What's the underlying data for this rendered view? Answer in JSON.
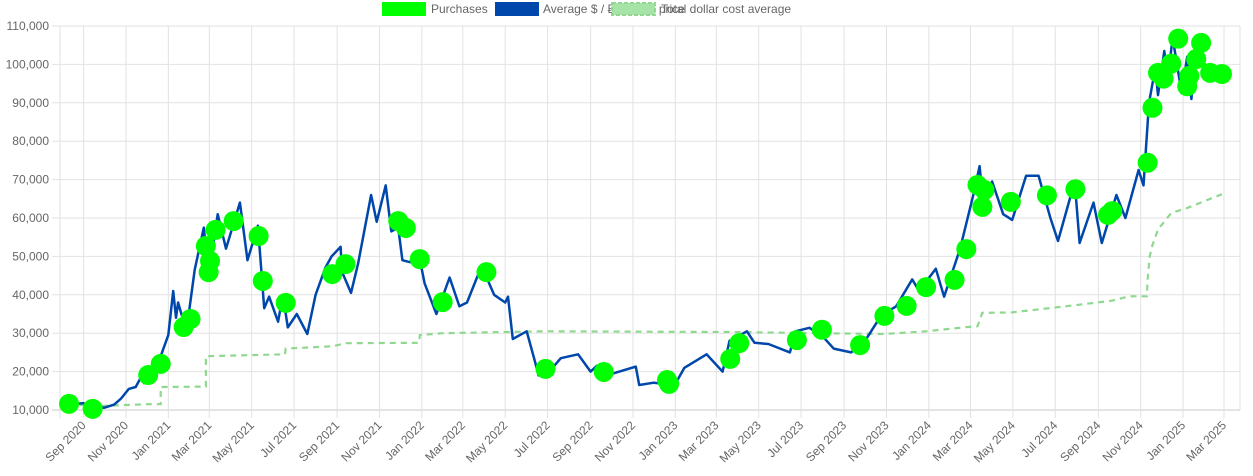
{
  "chart_data": {
    "type": "line",
    "title": "",
    "xlabel": "",
    "ylabel": "",
    "legend_position": "top",
    "grid": true,
    "xlim": [
      "2020-07-29",
      "2025-03-24"
    ],
    "ylim": [
      10000,
      110000
    ],
    "y_ticks": [
      "10,000",
      "20,000",
      "30,000",
      "40,000",
      "50,000",
      "60,000",
      "70,000",
      "80,000",
      "90,000",
      "100,000",
      "110,000"
    ],
    "y_tick_values": [
      10000,
      20000,
      30000,
      40000,
      50000,
      60000,
      70000,
      80000,
      90000,
      100000,
      110000
    ],
    "x_ticks": [
      {
        "date": "2020-09-01",
        "label": "Sep 2020"
      },
      {
        "date": "2020-11-01",
        "label": "Nov 2020"
      },
      {
        "date": "2021-01-01",
        "label": "Jan 2021"
      },
      {
        "date": "2021-03-01",
        "label": "Mar 2021"
      },
      {
        "date": "2021-05-01",
        "label": "May 2021"
      },
      {
        "date": "2021-07-01",
        "label": "Jul 2021"
      },
      {
        "date": "2021-09-01",
        "label": "Sep 2021"
      },
      {
        "date": "2021-11-01",
        "label": "Nov 2021"
      },
      {
        "date": "2022-01-01",
        "label": "Jan 2022"
      },
      {
        "date": "2022-03-01",
        "label": "Mar 2022"
      },
      {
        "date": "2022-05-01",
        "label": "May 2022"
      },
      {
        "date": "2022-07-01",
        "label": "Jul 2022"
      },
      {
        "date": "2022-09-01",
        "label": "Sep 2022"
      },
      {
        "date": "2022-11-01",
        "label": "Nov 2022"
      },
      {
        "date": "2023-01-01",
        "label": "Jan 2023"
      },
      {
        "date": "2023-03-01",
        "label": "Mar 2023"
      },
      {
        "date": "2023-05-01",
        "label": "May 2023"
      },
      {
        "date": "2023-07-01",
        "label": "Jul 2023"
      },
      {
        "date": "2023-09-01",
        "label": "Sep 2023"
      },
      {
        "date": "2023-11-01",
        "label": "Nov 2023"
      },
      {
        "date": "2024-01-01",
        "label": "Jan 2024"
      },
      {
        "date": "2024-03-01",
        "label": "Mar 2024"
      },
      {
        "date": "2024-05-01",
        "label": "May 2024"
      },
      {
        "date": "2024-07-01",
        "label": "Jul 2024"
      },
      {
        "date": "2024-09-01",
        "label": "Sep 2024"
      },
      {
        "date": "2024-11-01",
        "label": "Nov 2024"
      },
      {
        "date": "2025-01-01",
        "label": "Jan 2025"
      },
      {
        "date": "2025-03-01",
        "label": "Mar 2025"
      }
    ],
    "legend": [
      {
        "name": "Purchases",
        "color": "#00ff00",
        "style": "fill"
      },
      {
        "name": "Average $ / Ƀ market price",
        "color": "#0047ab",
        "style": "fill"
      },
      {
        "name": "Total dollar cost average",
        "color": "#90d890",
        "style": "dashed"
      }
    ],
    "series": [
      {
        "name": "Purchases",
        "type": "scatter",
        "color": "#00ff00",
        "points": [
          [
            "2020-08-11",
            11600
          ],
          [
            "2020-09-14",
            10300
          ],
          [
            "2020-12-03",
            19100
          ],
          [
            "2020-12-21",
            22000
          ],
          [
            "2021-01-23",
            31600
          ],
          [
            "2021-02-02",
            33700
          ],
          [
            "2021-02-24",
            52700
          ],
          [
            "2021-02-28",
            45900
          ],
          [
            "2021-03-02",
            48800
          ],
          [
            "2021-03-10",
            56900
          ],
          [
            "2021-04-05",
            59200
          ],
          [
            "2021-05-11",
            55300
          ],
          [
            "2021-05-17",
            43600
          ],
          [
            "2021-06-19",
            37900
          ],
          [
            "2021-08-25",
            45400
          ],
          [
            "2021-09-13",
            48000
          ],
          [
            "2021-11-28",
            59200
          ],
          [
            "2021-12-09",
            57400
          ],
          [
            "2021-12-29",
            49300
          ],
          [
            "2022-01-31",
            38100
          ],
          [
            "2022-04-04",
            45900
          ],
          [
            "2022-06-28",
            20700
          ],
          [
            "2022-09-20",
            19900
          ],
          [
            "2022-12-20",
            17800
          ],
          [
            "2022-12-23",
            16800
          ],
          [
            "2023-03-21",
            23300
          ],
          [
            "2023-04-03",
            27400
          ],
          [
            "2023-06-25",
            28200
          ],
          [
            "2023-07-31",
            30900
          ],
          [
            "2023-09-24",
            26900
          ],
          [
            "2023-10-29",
            34500
          ],
          [
            "2023-11-30",
            37100
          ],
          [
            "2023-12-28",
            42000
          ],
          [
            "2024-02-07",
            43900
          ],
          [
            "2024-02-24",
            51900
          ],
          [
            "2024-03-11",
            68600
          ],
          [
            "2024-03-18",
            62900
          ],
          [
            "2024-03-21",
            67300
          ],
          [
            "2024-04-28",
            64200
          ],
          [
            "2024-06-19",
            65900
          ],
          [
            "2024-07-30",
            67500
          ],
          [
            "2024-09-15",
            60800
          ],
          [
            "2024-09-21",
            61800
          ],
          [
            "2024-11-11",
            74400
          ],
          [
            "2024-11-18",
            88700
          ],
          [
            "2024-11-26",
            97800
          ],
          [
            "2024-12-04",
            96300
          ],
          [
            "2024-12-15",
            100200
          ],
          [
            "2024-12-25",
            106700
          ],
          [
            "2025-01-07",
            94300
          ],
          [
            "2025-01-10",
            97000
          ],
          [
            "2025-01-20",
            101400
          ],
          [
            "2025-01-27",
            105600
          ],
          [
            "2025-02-09",
            97800
          ],
          [
            "2025-02-26",
            97500
          ]
        ]
      },
      {
        "name": "Average $ / Ƀ market price",
        "type": "line",
        "color": "#0047ab",
        "points": [
          [
            "2020-08-01",
            11500
          ],
          [
            "2020-08-15",
            11900
          ],
          [
            "2020-08-22",
            11600
          ],
          [
            "2020-09-01",
            11800
          ],
          [
            "2020-09-08",
            10200
          ],
          [
            "2020-09-15",
            10800
          ],
          [
            "2020-10-01",
            10600
          ],
          [
            "2020-10-15",
            11400
          ],
          [
            "2020-10-25",
            13000
          ],
          [
            "2020-11-05",
            15500
          ],
          [
            "2020-11-15",
            16000
          ],
          [
            "2020-11-24",
            19000
          ],
          [
            "2020-11-27",
            17000
          ],
          [
            "2020-12-01",
            19200
          ],
          [
            "2020-12-12",
            18000
          ],
          [
            "2020-12-20",
            23500
          ],
          [
            "2021-01-01",
            29500
          ],
          [
            "2021-01-08",
            41000
          ],
          [
            "2021-01-12",
            34000
          ],
          [
            "2021-01-15",
            38000
          ],
          [
            "2021-01-27",
            30500
          ],
          [
            "2021-02-08",
            46500
          ],
          [
            "2021-02-21",
            57500
          ],
          [
            "2021-02-28",
            45000
          ],
          [
            "2021-03-13",
            61000
          ],
          [
            "2021-03-25",
            52000
          ],
          [
            "2021-04-14",
            64000
          ],
          [
            "2021-04-25",
            49000
          ],
          [
            "2021-05-10",
            58000
          ],
          [
            "2021-05-19",
            36500
          ],
          [
            "2021-05-26",
            39500
          ],
          [
            "2021-06-08",
            33000
          ],
          [
            "2021-06-15",
            40000
          ],
          [
            "2021-06-22",
            31500
          ],
          [
            "2021-07-05",
            35000
          ],
          [
            "2021-07-20",
            29800
          ],
          [
            "2021-08-01",
            40000
          ],
          [
            "2021-08-15",
            47000
          ],
          [
            "2021-08-24",
            50000
          ],
          [
            "2021-09-06",
            52500
          ],
          [
            "2021-09-08",
            46000
          ],
          [
            "2021-09-21",
            40500
          ],
          [
            "2021-10-01",
            48000
          ],
          [
            "2021-10-20",
            66000
          ],
          [
            "2021-10-28",
            59000
          ],
          [
            "2021-11-10",
            68500
          ],
          [
            "2021-11-18",
            56500
          ],
          [
            "2021-11-28",
            57500
          ],
          [
            "2021-12-04",
            49000
          ],
          [
            "2021-12-15",
            48500
          ],
          [
            "2021-12-27",
            51000
          ],
          [
            "2022-01-05",
            43000
          ],
          [
            "2022-01-22",
            35000
          ],
          [
            "2022-02-10",
            44500
          ],
          [
            "2022-02-24",
            37000
          ],
          [
            "2022-03-07",
            38000
          ],
          [
            "2022-03-28",
            47500
          ],
          [
            "2022-04-15",
            40000
          ],
          [
            "2022-05-01",
            38000
          ],
          [
            "2022-05-05",
            39500
          ],
          [
            "2022-05-12",
            28500
          ],
          [
            "2022-06-01",
            30500
          ],
          [
            "2022-06-13",
            22500
          ],
          [
            "2022-06-18",
            19000
          ],
          [
            "2022-07-01",
            19500
          ],
          [
            "2022-07-20",
            23500
          ],
          [
            "2022-08-14",
            24500
          ],
          [
            "2022-09-01",
            20000
          ],
          [
            "2022-09-10",
            21500
          ],
          [
            "2022-09-20",
            18800
          ],
          [
            "2022-10-01",
            19400
          ],
          [
            "2022-11-05",
            21300
          ],
          [
            "2022-11-10",
            16500
          ],
          [
            "2022-12-01",
            17100
          ],
          [
            "2022-12-31",
            16500
          ],
          [
            "2023-01-14",
            21000
          ],
          [
            "2023-02-15",
            24500
          ],
          [
            "2023-03-10",
            20000
          ],
          [
            "2023-03-20",
            28000
          ],
          [
            "2023-04-14",
            30500
          ],
          [
            "2023-04-25",
            27500
          ],
          [
            "2023-05-15",
            27200
          ],
          [
            "2023-06-15",
            25000
          ],
          [
            "2023-06-23",
            30500
          ],
          [
            "2023-07-13",
            31400
          ],
          [
            "2023-08-01",
            29200
          ],
          [
            "2023-08-17",
            26000
          ],
          [
            "2023-09-11",
            25000
          ],
          [
            "2023-10-01",
            28000
          ],
          [
            "2023-10-24",
            34500
          ],
          [
            "2023-11-15",
            37000
          ],
          [
            "2023-12-08",
            44000
          ],
          [
            "2023-12-18",
            41000
          ],
          [
            "2024-01-11",
            46800
          ],
          [
            "2024-01-23",
            39500
          ],
          [
            "2024-02-15",
            52000
          ],
          [
            "2024-03-05",
            66000
          ],
          [
            "2024-03-14",
            73500
          ],
          [
            "2024-03-20",
            62500
          ],
          [
            "2024-04-01",
            69500
          ],
          [
            "2024-04-17",
            61000
          ],
          [
            "2024-04-30",
            59500
          ],
          [
            "2024-05-20",
            71000
          ],
          [
            "2024-06-07",
            71000
          ],
          [
            "2024-06-24",
            60000
          ],
          [
            "2024-07-05",
            54000
          ],
          [
            "2024-07-29",
            69500
          ],
          [
            "2024-08-05",
            53500
          ],
          [
            "2024-08-25",
            64000
          ],
          [
            "2024-09-06",
            53500
          ],
          [
            "2024-09-27",
            66000
          ],
          [
            "2024-10-10",
            60000
          ],
          [
            "2024-10-29",
            72500
          ],
          [
            "2024-11-05",
            68500
          ],
          [
            "2024-11-13",
            90000
          ],
          [
            "2024-11-22",
            99000
          ],
          [
            "2024-11-26",
            92000
          ],
          [
            "2024-12-05",
            103500
          ],
          [
            "2024-12-10",
            96000
          ],
          [
            "2024-12-17",
            107000
          ],
          [
            "2024-12-30",
            92500
          ],
          [
            "2025-01-07",
            102000
          ],
          [
            "2025-01-13",
            91000
          ],
          [
            "2025-01-20",
            106000
          ],
          [
            "2025-02-01",
            100000
          ],
          [
            "2025-02-10",
            97000
          ],
          [
            "2025-02-20",
            98500
          ],
          [
            "2025-02-27",
            97000
          ]
        ]
      },
      {
        "name": "Total dollar cost average",
        "type": "line",
        "color": "#90d890",
        "dashed": true,
        "points": [
          [
            "2020-08-11",
            11600
          ],
          [
            "2020-09-14",
            11000
          ],
          [
            "2020-12-03",
            11500
          ],
          [
            "2020-12-21",
            11500
          ],
          [
            "2020-12-21",
            16000
          ],
          [
            "2021-02-24",
            16100
          ],
          [
            "2021-02-24",
            24000
          ],
          [
            "2021-06-18",
            24500
          ],
          [
            "2021-06-19",
            26000
          ],
          [
            "2021-08-25",
            26600
          ],
          [
            "2021-09-13",
            27400
          ],
          [
            "2021-12-28",
            27500
          ],
          [
            "2021-12-29",
            29500
          ],
          [
            "2022-01-31",
            30000
          ],
          [
            "2022-06-28",
            30500
          ],
          [
            "2023-03-21",
            30300
          ],
          [
            "2023-10-29",
            29800
          ],
          [
            "2023-12-28",
            30500
          ],
          [
            "2024-02-24",
            31600
          ],
          [
            "2024-03-11",
            31800
          ],
          [
            "2024-03-18",
            35300
          ],
          [
            "2024-04-28",
            35400
          ],
          [
            "2024-07-30",
            37300
          ],
          [
            "2024-09-21",
            38500
          ],
          [
            "2024-10-15",
            39600
          ],
          [
            "2024-11-10",
            39600
          ],
          [
            "2024-11-11",
            44000
          ],
          [
            "2024-11-14",
            50000
          ],
          [
            "2024-11-18",
            53000
          ],
          [
            "2024-11-26",
            57000
          ],
          [
            "2024-12-15",
            61300
          ],
          [
            "2025-01-07",
            62600
          ],
          [
            "2025-02-26",
            66200
          ]
        ]
      }
    ]
  }
}
